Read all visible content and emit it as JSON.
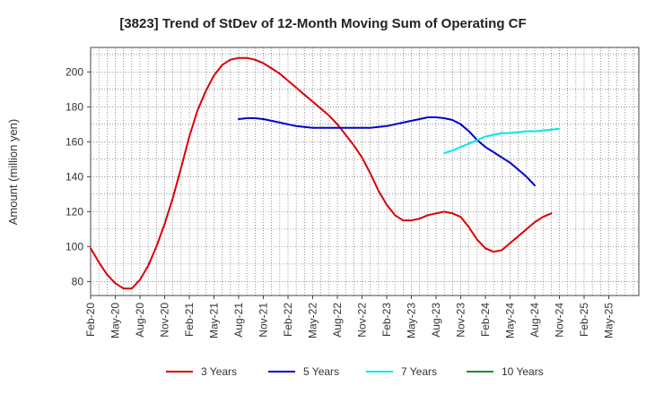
{
  "chart_data": {
    "type": "line",
    "title": "[3823]  Trend of StDev of 12-Month Moving Sum of Operating CF",
    "xlabel": "",
    "ylabel": "Amount (million yen)",
    "ylim": [
      72,
      214
    ],
    "yticks": [
      80,
      100,
      120,
      140,
      160,
      180,
      200
    ],
    "x_tick_labels": [
      "Feb-20",
      "May-20",
      "Aug-20",
      "Nov-20",
      "Feb-21",
      "May-21",
      "Aug-21",
      "Nov-21",
      "Feb-22",
      "May-22",
      "Aug-22",
      "Nov-22",
      "Feb-23",
      "May-23",
      "Aug-23",
      "Nov-23",
      "Feb-24",
      "May-24",
      "Aug-24",
      "Nov-24",
      "Feb-25",
      "May-25"
    ],
    "grid": true,
    "legend_position": "bottom",
    "series": [
      {
        "name": "3 Years",
        "color": "#dd0000",
        "start_index": 0,
        "values": [
          99,
          91,
          84,
          79,
          76,
          76,
          81,
          89,
          100,
          113,
          128,
          145,
          163,
          178,
          189,
          198,
          204,
          207,
          208,
          208,
          207,
          205,
          202,
          199,
          195,
          191,
          187,
          183,
          179,
          175,
          170,
          164,
          158,
          151,
          142,
          132,
          124,
          118,
          115,
          115,
          116,
          118,
          119,
          120,
          119,
          117,
          111,
          104,
          99,
          97,
          98,
          102,
          106,
          110,
          114,
          117,
          119
        ]
      },
      {
        "name": "5 Years",
        "color": "#0000cc",
        "start_index": 18,
        "values": [
          173,
          173.5,
          173.5,
          173,
          172,
          171,
          170,
          169,
          168.5,
          168,
          168,
          168,
          168,
          168,
          168,
          168,
          168,
          168.5,
          169,
          170,
          171,
          172,
          173,
          174,
          174,
          173.5,
          172.5,
          170,
          166,
          161,
          157,
          154,
          151,
          148,
          144,
          140,
          135
        ]
      },
      {
        "name": "7 Years",
        "color": "#00e5ee",
        "start_index": 43,
        "values": [
          153.5,
          155,
          157,
          159,
          161,
          163,
          164,
          165,
          165,
          165.5,
          166,
          166,
          166.5,
          167,
          167.5
        ]
      },
      {
        "name": "10 Years",
        "color": "#228b22",
        "start_index": 0,
        "values": []
      }
    ]
  }
}
